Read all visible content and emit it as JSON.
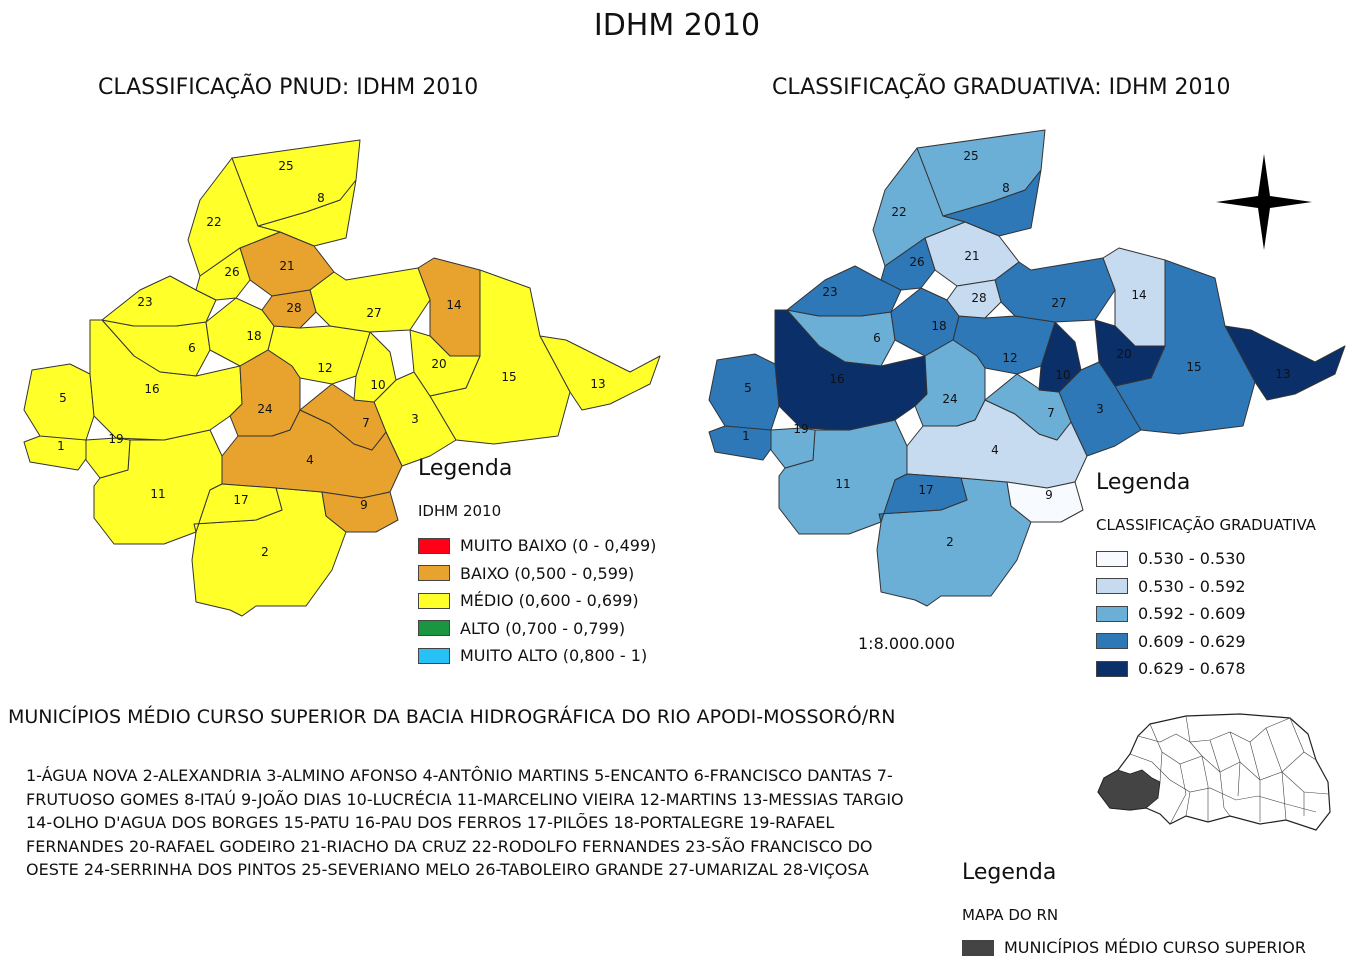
{
  "title": "IDHM 2010",
  "left_map": {
    "title": "CLASSIFICAÇÃO PNUD: IDHM 2010",
    "legend_title": "Legenda",
    "legend_subtitle": "IDHM 2010",
    "legend": [
      {
        "label": "MUITO BAIXO (0 - 0,499)",
        "color": "#ff0016"
      },
      {
        "label": "BAIXO (0,500 - 0,599)",
        "color": "#e8a32e"
      },
      {
        "label": "MÉDIO (0,600 - 0,699)",
        "color": "#ffff2a"
      },
      {
        "label": "ALTO (0,700 - 0,799)",
        "color": "#1a9641"
      },
      {
        "label": "MUITO ALTO (0,800 - 1)",
        "color": "#27c1f5"
      }
    ]
  },
  "right_map": {
    "title": "CLASSIFICAÇÃO GRADUATIVA: IDHM 2010",
    "legend_title": "Legenda",
    "legend_subtitle": "CLASSIFICAÇÃO GRADUATIVA",
    "legend": [
      {
        "label": "0.530 - 0.530",
        "color": "#f7fbff"
      },
      {
        "label": "0.530 - 0.592",
        "color": "#c6dbef"
      },
      {
        "label": "0.592 - 0.609",
        "color": "#6baed6"
      },
      {
        "label": "0.609 - 0.629",
        "color": "#2e78b8"
      },
      {
        "label": "0.629 - 0.678",
        "color": "#0b2f68"
      }
    ],
    "scale": "1:8.000.000"
  },
  "municipality_labels": [
    "1",
    "2",
    "3",
    "4",
    "5",
    "6",
    "7",
    "8",
    "9",
    "10",
    "11",
    "12",
    "13",
    "14",
    "15",
    "16",
    "17",
    "18",
    "19",
    "20",
    "21",
    "22",
    "23",
    "24",
    "25",
    "26",
    "27",
    "28"
  ],
  "pnud_class": {
    "1": "m",
    "2": "m",
    "3": "m",
    "4": "b",
    "5": "m",
    "6": "m",
    "7": "b",
    "8": "m",
    "9": "b",
    "10": "m",
    "11": "m",
    "12": "m",
    "13": "m",
    "14": "b",
    "15": "m",
    "16": "m",
    "17": "m",
    "18": "m",
    "19": "m",
    "20": "m",
    "21": "b",
    "22": "m",
    "23": "m",
    "24": "b",
    "25": "m",
    "26": "m",
    "27": "m",
    "28": "b"
  },
  "graduated_class": {
    "1": 4,
    "2": 3,
    "3": 4,
    "4": 2,
    "5": 4,
    "6": 3,
    "7": 3,
    "8": 4,
    "9": 1,
    "10": 5,
    "11": 3,
    "12": 4,
    "13": 5,
    "14": 2,
    "15": 4,
    "16": 5,
    "17": 4,
    "18": 4,
    "19": 3,
    "20": 5,
    "21": 2,
    "22": 3,
    "23": 4,
    "24": 3,
    "25": 3,
    "26": 4,
    "27": 4,
    "28": 2
  },
  "municipalities_heading": "MUNICÍPIOS MÉDIO CURSO SUPERIOR DA BACIA HIDROGRÁFICA DO RIO APODI-MOSSORÓ/RN",
  "municipalities_list": "1-ÁGUA NOVA  2-ALEXANDRIA  3-ALMINO AFONSO  4-ANTÔNIO MARTINS  5-ENCANTO   6-FRANCISCO DANTAS  7-FRUTUOSO GOMES  8-ITAÚ  9-JOÃO DIAS  10-LUCRÉCIA  11-MARCELINO VIEIRA  12-MARTINS  13-MESSIAS TARGIO  14-OLHO D'AGUA DOS BORGES  15-PATU  16-PAU DOS FERROS  17-PILÕES  18-PORTALEGRE  19-RAFAEL FERNANDES  20-RAFAEL GODEIRO  21-RIACHO DA CRUZ  22-RODOLFO FERNANDES  23-SÃO FRANCISCO DO OESTE  24-SERRINHA DOS PINTOS  25-SEVERIANO MELO  26-TABOLEIRO GRANDE  27-UMARIZAL  28-VIÇOSA",
  "rn_map": {
    "legend_title": "Legenda",
    "legend_subtitle": "MAPA DO RN",
    "legend_item": "MUNICÍPIOS MÉDIO CURSO SUPERIOR",
    "highlight_color": "#444444"
  },
  "north_arrow_icon": "compass-star-icon"
}
